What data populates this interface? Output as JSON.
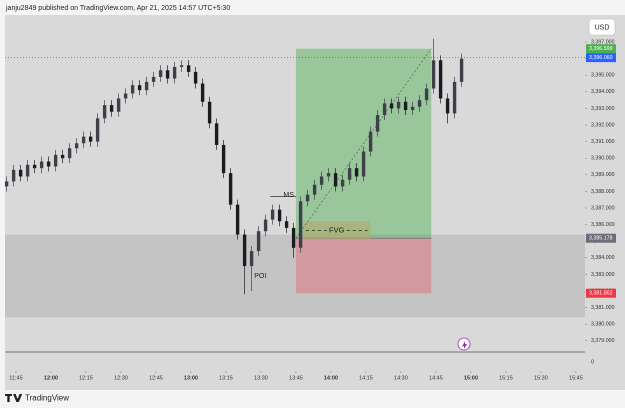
{
  "header": {
    "publisher": "janju2849 published on TradingView.com, Apr 21, 2025 14:57 UTC+5:30",
    "currency": "USD",
    "footer": "TradingView"
  },
  "chart_data": {
    "type": "candlestick",
    "x": [
      701,
      704,
      707,
      710,
      713,
      716,
      719,
      722,
      725,
      728,
      731,
      734,
      737,
      740,
      743,
      746,
      749,
      752,
      755,
      758,
      761,
      764,
      767,
      770,
      773,
      776,
      779,
      782,
      785,
      788,
      791,
      794,
      797,
      800,
      803,
      806,
      809,
      812,
      815,
      818,
      821,
      824,
      827,
      830,
      833,
      836,
      839,
      842,
      845,
      848,
      851,
      854,
      857,
      860,
      863,
      866,
      869,
      872,
      875,
      878,
      881,
      884,
      887,
      890,
      893,
      896
    ],
    "open": [
      3388.3,
      3388.6,
      3389.3,
      3388.9,
      3389.6,
      3389.4,
      3389.8,
      3389.5,
      3390.2,
      3390.0,
      3390.6,
      3390.9,
      3391.3,
      3391.0,
      3392.4,
      3393.2,
      3392.8,
      3393.6,
      3393.9,
      3394.4,
      3394.1,
      3394.6,
      3394.9,
      3395.3,
      3394.8,
      3395.5,
      3395.6,
      3395.2,
      3394.5,
      3393.4,
      3392.1,
      3390.8,
      3389.1,
      3387.2,
      3385.4,
      3383.5,
      3384.4,
      3385.6,
      3386.3,
      3386.9,
      3386.2,
      3385.8,
      3384.6,
      3387.4,
      3387.8,
      3388.4,
      3388.9,
      3389.1,
      3388.3,
      3388.7,
      3389.4,
      3388.9,
      3390.4,
      3391.6,
      3392.6,
      3393.3,
      3393.0,
      3393.4,
      3392.9,
      3393.1,
      3393.5,
      3394.2,
      3395.9,
      3393.6,
      3392.7,
      3394.6
    ],
    "high": [
      3388.9,
      3389.6,
      3389.6,
      3389.9,
      3389.9,
      3390.1,
      3390.1,
      3390.5,
      3390.5,
      3390.9,
      3391.2,
      3391.6,
      3391.6,
      3392.7,
      3393.5,
      3393.5,
      3393.9,
      3394.2,
      3394.7,
      3394.7,
      3394.9,
      3395.2,
      3395.6,
      3395.6,
      3395.8,
      3395.9,
      3395.9,
      3395.5,
      3394.8,
      3393.7,
      3392.4,
      3391.1,
      3389.4,
      3387.5,
      3385.7,
      3384.7,
      3385.9,
      3386.6,
      3387.2,
      3387.2,
      3386.5,
      3386.1,
      3387.7,
      3388.1,
      3388.7,
      3389.2,
      3389.4,
      3389.4,
      3389.0,
      3389.7,
      3389.7,
      3390.7,
      3391.9,
      3392.9,
      3393.6,
      3393.6,
      3393.7,
      3393.7,
      3393.4,
      3393.8,
      3394.5,
      3397.2,
      3396.2,
      3393.9,
      3394.9,
      3396.3
    ],
    "low": [
      3388.0,
      3388.3,
      3388.6,
      3388.6,
      3389.1,
      3389.1,
      3389.2,
      3389.2,
      3389.7,
      3389.7,
      3390.3,
      3390.6,
      3390.7,
      3390.7,
      3392.1,
      3392.5,
      3392.5,
      3393.3,
      3393.6,
      3393.8,
      3393.8,
      3394.3,
      3394.6,
      3394.5,
      3394.5,
      3395.2,
      3394.9,
      3394.2,
      3393.1,
      3391.8,
      3390.5,
      3388.8,
      3386.9,
      3385.1,
      3381.8,
      3382.0,
      3384.1,
      3385.3,
      3386.0,
      3385.9,
      3385.5,
      3384.0,
      3384.3,
      3387.1,
      3387.5,
      3388.1,
      3388.6,
      3388.0,
      3388.0,
      3388.4,
      3388.6,
      3388.6,
      3390.1,
      3391.3,
      3392.3,
      3392.7,
      3392.7,
      3392.6,
      3392.6,
      3392.8,
      3393.2,
      3393.9,
      3393.3,
      3392.1,
      3392.4,
      3394.3
    ],
    "close": [
      3388.6,
      3389.3,
      3388.9,
      3389.6,
      3389.4,
      3389.8,
      3389.5,
      3390.2,
      3390.0,
      3390.6,
      3390.9,
      3391.3,
      3391.0,
      3392.4,
      3393.2,
      3392.8,
      3393.6,
      3393.9,
      3394.4,
      3394.1,
      3394.6,
      3394.9,
      3395.3,
      3394.8,
      3395.5,
      3395.6,
      3395.2,
      3394.5,
      3393.4,
      3392.1,
      3390.8,
      3389.1,
      3387.2,
      3385.4,
      3383.5,
      3384.4,
      3385.6,
      3386.3,
      3386.9,
      3386.2,
      3385.8,
      3384.6,
      3387.4,
      3387.8,
      3388.4,
      3388.9,
      3389.1,
      3388.3,
      3388.7,
      3389.4,
      3388.9,
      3390.4,
      3391.6,
      3392.6,
      3393.3,
      3393.0,
      3393.4,
      3392.9,
      3393.1,
      3393.5,
      3394.2,
      3395.9,
      3393.6,
      3392.7,
      3394.6,
      3396.0
    ],
    "up_color": "#3d4048",
    "down_color": "#1b1c20",
    "xlim": [
      700.3,
      948.9
    ],
    "xticks": [
      {
        "value": 705,
        "label": "11:45"
      },
      {
        "value": 720,
        "label": "12:00"
      },
      {
        "value": 735,
        "label": "12:15"
      },
      {
        "value": 750,
        "label": "12:30"
      },
      {
        "value": 765,
        "label": "12:45"
      },
      {
        "value": 780,
        "label": "13:00"
      },
      {
        "value": 795,
        "label": "13:15"
      },
      {
        "value": 810,
        "label": "13:30"
      },
      {
        "value": 825,
        "label": "13:45"
      },
      {
        "value": 840,
        "label": "14:00"
      },
      {
        "value": 855,
        "label": "14:15"
      },
      {
        "value": 870,
        "label": "14:30"
      },
      {
        "value": 885,
        "label": "14:45"
      },
      {
        "value": 900,
        "label": "15:00"
      },
      {
        "value": 915,
        "label": "15:15"
      },
      {
        "value": 930,
        "label": "15:30"
      },
      {
        "value": 945,
        "label": "15:45"
      }
    ],
    "ylim": [
      3378.14,
      3398.63
    ],
    "yticks": [
      {
        "value": 3379,
        "label": "3,379.000"
      },
      {
        "value": 3380,
        "label": "3,380.000"
      },
      {
        "value": 3381,
        "label": "3,381.000"
      },
      {
        "value": 3382,
        "label": "3,382.000"
      },
      {
        "value": 3383,
        "label": "3,383.000"
      },
      {
        "value": 3384,
        "label": "3,384.000"
      },
      {
        "value": 3385,
        "label": "3,385.000"
      },
      {
        "value": 3386,
        "label": "3,386.000"
      },
      {
        "value": 3387,
        "label": "3,387.000"
      },
      {
        "value": 3388,
        "label": "3,388.000"
      },
      {
        "value": 3389,
        "label": "3,389.000"
      },
      {
        "value": 3390,
        "label": "3,390.000"
      },
      {
        "value": 3391,
        "label": "3,391.000"
      },
      {
        "value": 3392,
        "label": "3,392.000"
      },
      {
        "value": 3393,
        "label": "3,393.000"
      },
      {
        "value": 3394,
        "label": "3,394.000"
      },
      {
        "value": 3395,
        "label": "3,395.000"
      },
      {
        "value": 3396,
        "label": "3,396.000"
      },
      {
        "value": 3397,
        "label": "3,397.000"
      }
    ],
    "volume_ticks": [
      0
    ],
    "position": {
      "start": 825,
      "end": 883,
      "target": {
        "value": 3396.599,
        "label": "3,396.599",
        "color": "#4caf50"
      },
      "entry": {
        "value": 3385.178,
        "label": "3,385.178",
        "color": "#6a6d78"
      },
      "stop": {
        "value": 3381.862,
        "label": "3,381.862",
        "color": "#f23645"
      }
    },
    "last_price": {
      "value": 3396.06,
      "label": "3,396.060",
      "color": "#2962ff"
    },
    "poi": {
      "label": "POI",
      "low": 3380.4,
      "high": 3385.4
    },
    "fvg": {
      "label": "FVG",
      "start": 828,
      "end": 857,
      "low": 3385.1,
      "high": 3386.2
    },
    "ms": {
      "label": "MS",
      "start": 814,
      "end": 825,
      "value": 3387.7
    }
  }
}
